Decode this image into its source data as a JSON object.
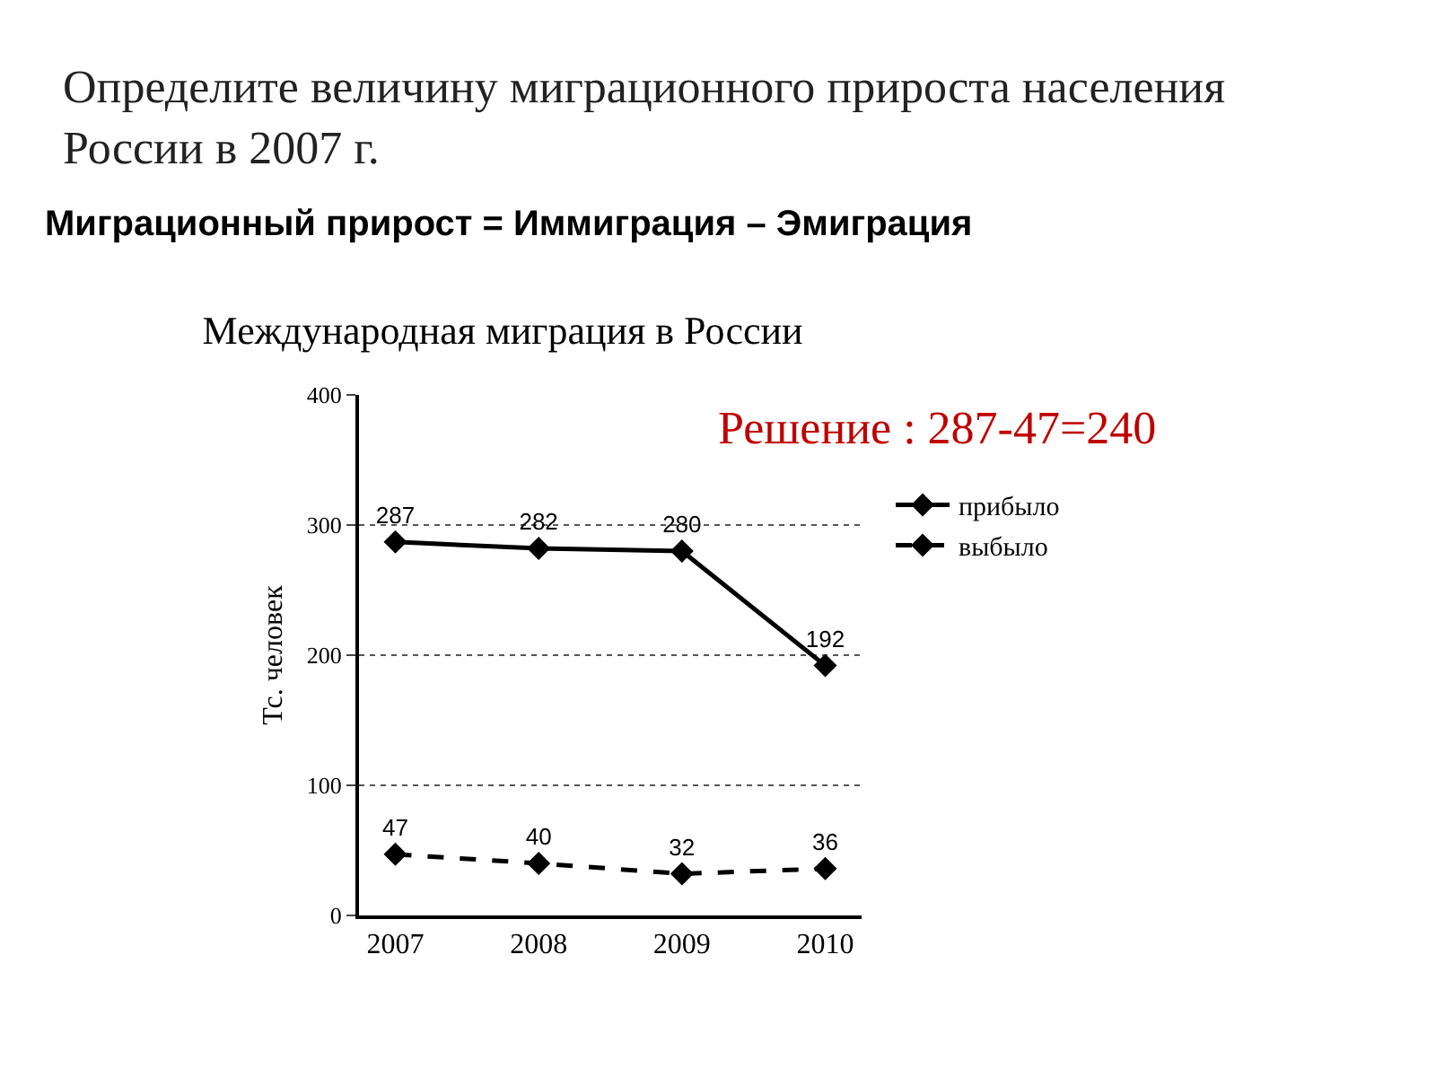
{
  "chart_data": {
    "type": "line",
    "title": "Международная миграция в России",
    "ylabel": "Тс. человек",
    "annotations": [
      "Определите величину миграционного прироста населения России в 2007 г.",
      "Миграционный прирост = Иммиграция – Эмиграция",
      "Решение : 287-47=240"
    ],
    "categories": [
      "2007",
      "2008",
      "2009",
      "2010"
    ],
    "series": [
      {
        "name": "прибыло",
        "color": "#000000",
        "values": [
          287,
          282,
          280,
          192
        ],
        "line_style": "solid"
      },
      {
        "name": "выбыло",
        "color": "#000000",
        "values": [
          47,
          40,
          32,
          36
        ],
        "line_style": "dashed"
      }
    ],
    "ylim": [
      0,
      400
    ],
    "yticks": [
      0,
      100,
      200,
      300,
      400
    ],
    "grid": "y",
    "legend": "right",
    "marker": "diamond",
    "data_labels": true
  }
}
